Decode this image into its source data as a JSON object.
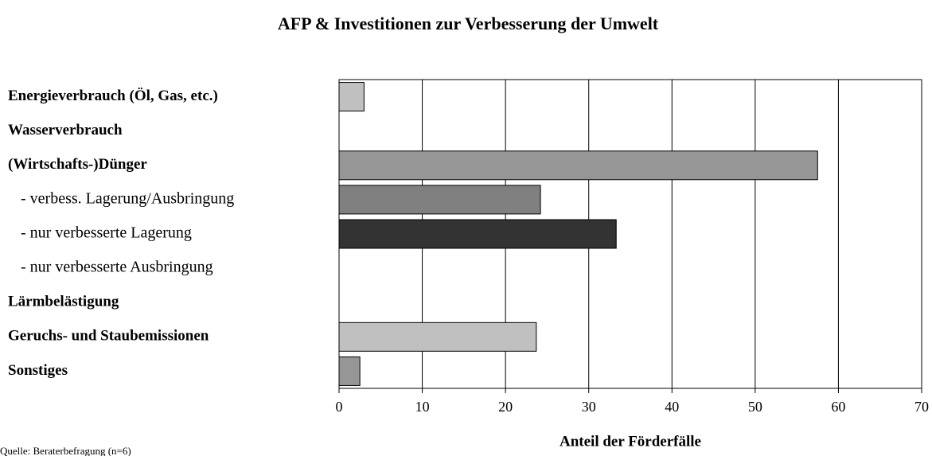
{
  "chart_data": {
    "type": "barh",
    "title": "AFP & Investitionen zur Verbesserung der Umwelt",
    "x_label": "Anteil der Förderfälle",
    "source": "Quelle: Beraterbefragung (n=6)",
    "categories": [
      "Energieverbrauch (Öl, Gas, etc.)",
      "Wasserverbrauch",
      "(Wirtschafts-)Dünger",
      "- verbess. Lagerung/Ausbringung",
      "- nur verbesserte Lagerung",
      "- nur verbesserte Ausbringung",
      "Lärmbelästigung",
      "Geruchs- und Staubemissionen",
      "Sonstiges"
    ],
    "values": [
      3,
      0,
      57.5,
      24.2,
      33.3,
      0,
      0,
      23.7,
      2.5
    ],
    "colors": [
      "#c0c0c0",
      "#c0c0c0",
      "#969696",
      "#808080",
      "#333333",
      "#808080",
      "#c0c0c0",
      "#c0c0c0",
      "#969696"
    ],
    "xlim": [
      0,
      70
    ],
    "xticks": [
      0,
      10,
      20,
      30,
      40,
      50,
      60,
      70
    ],
    "grid": true
  }
}
